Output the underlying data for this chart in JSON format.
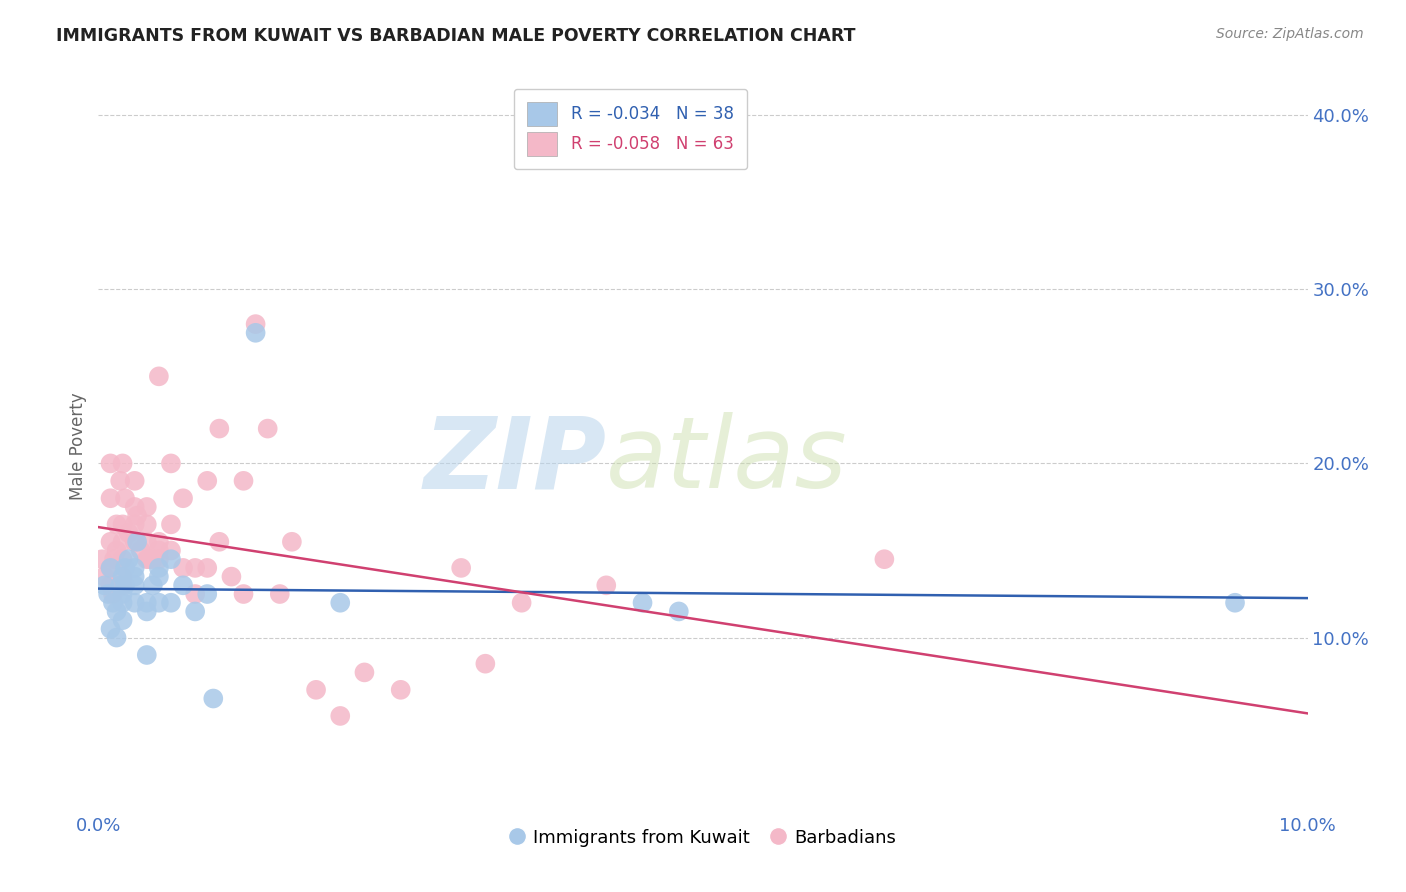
{
  "title": "IMMIGRANTS FROM KUWAIT VS BARBADIAN MALE POVERTY CORRELATION CHART",
  "source_text": "Source: ZipAtlas.com",
  "ylabel": "Male Poverty",
  "xlim": [
    0.0,
    0.1
  ],
  "ylim": [
    0.0,
    0.42
  ],
  "blue_R": -0.034,
  "blue_N": 38,
  "pink_R": -0.058,
  "pink_N": 63,
  "blue_color": "#a8c8e8",
  "pink_color": "#f4b8c8",
  "blue_line_color": "#3060b0",
  "pink_line_color": "#d04070",
  "legend_blue_label": "Immigrants from Kuwait",
  "legend_pink_label": "Barbadians",
  "watermark_zip": "ZIP",
  "watermark_atlas": "atlas",
  "grid_color": "#cccccc",
  "background_color": "#ffffff",
  "title_color": "#222222",
  "source_color": "#888888",
  "axis_color": "#4472c4",
  "blue_x": [
    0.0005,
    0.0008,
    0.001,
    0.001,
    0.0012,
    0.0015,
    0.0015,
    0.0018,
    0.002,
    0.002,
    0.002,
    0.002,
    0.0022,
    0.0022,
    0.0025,
    0.003,
    0.003,
    0.003,
    0.003,
    0.0032,
    0.004,
    0.004,
    0.004,
    0.0045,
    0.005,
    0.005,
    0.005,
    0.006,
    0.006,
    0.007,
    0.008,
    0.009,
    0.0095,
    0.013,
    0.02,
    0.045,
    0.048,
    0.094
  ],
  "blue_y": [
    0.13,
    0.125,
    0.14,
    0.105,
    0.12,
    0.115,
    0.1,
    0.13,
    0.125,
    0.135,
    0.12,
    0.11,
    0.13,
    0.14,
    0.145,
    0.135,
    0.14,
    0.12,
    0.13,
    0.155,
    0.12,
    0.115,
    0.09,
    0.13,
    0.135,
    0.14,
    0.12,
    0.145,
    0.12,
    0.13,
    0.115,
    0.125,
    0.065,
    0.275,
    0.12,
    0.12,
    0.115,
    0.12
  ],
  "pink_x": [
    0.0003,
    0.0005,
    0.001,
    0.001,
    0.001,
    0.001,
    0.001,
    0.0012,
    0.0013,
    0.0015,
    0.0015,
    0.0018,
    0.002,
    0.002,
    0.002,
    0.002,
    0.002,
    0.002,
    0.0022,
    0.0025,
    0.003,
    0.003,
    0.003,
    0.003,
    0.0032,
    0.0035,
    0.004,
    0.004,
    0.004,
    0.004,
    0.0042,
    0.0045,
    0.005,
    0.005,
    0.005,
    0.005,
    0.006,
    0.006,
    0.006,
    0.007,
    0.007,
    0.008,
    0.008,
    0.009,
    0.009,
    0.01,
    0.01,
    0.011,
    0.012,
    0.012,
    0.013,
    0.014,
    0.015,
    0.016,
    0.018,
    0.02,
    0.022,
    0.025,
    0.03,
    0.032,
    0.035,
    0.042,
    0.065
  ],
  "pink_y": [
    0.145,
    0.135,
    0.13,
    0.14,
    0.155,
    0.18,
    0.2,
    0.125,
    0.145,
    0.15,
    0.165,
    0.19,
    0.13,
    0.135,
    0.145,
    0.155,
    0.165,
    0.2,
    0.18,
    0.16,
    0.155,
    0.165,
    0.175,
    0.19,
    0.17,
    0.15,
    0.145,
    0.155,
    0.165,
    0.175,
    0.145,
    0.145,
    0.25,
    0.155,
    0.145,
    0.15,
    0.15,
    0.165,
    0.2,
    0.14,
    0.18,
    0.14,
    0.125,
    0.19,
    0.14,
    0.155,
    0.22,
    0.135,
    0.125,
    0.19,
    0.28,
    0.22,
    0.125,
    0.155,
    0.07,
    0.055,
    0.08,
    0.07,
    0.14,
    0.085,
    0.12,
    0.13,
    0.145
  ]
}
